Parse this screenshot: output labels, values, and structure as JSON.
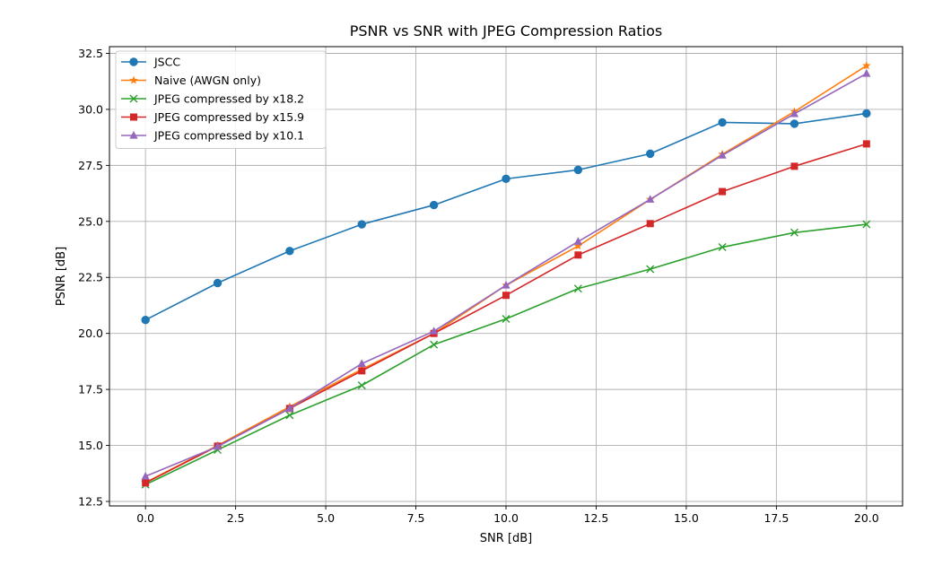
{
  "chart_data": {
    "type": "line",
    "title": "PSNR vs SNR with JPEG Compression Ratios",
    "xlabel": "SNR [dB]",
    "ylabel": "PSNR [dB]",
    "xlim": [
      -1.0,
      21.0
    ],
    "ylim": [
      12.3,
      32.8
    ],
    "xticks": [
      0.0,
      2.5,
      5.0,
      7.5,
      10.0,
      12.5,
      15.0,
      17.5,
      20.0
    ],
    "xtick_labels": [
      "0.0",
      "2.5",
      "5.0",
      "7.5",
      "10.0",
      "12.5",
      "15.0",
      "17.5",
      "20.0"
    ],
    "yticks": [
      12.5,
      15.0,
      17.5,
      20.0,
      22.5,
      25.0,
      27.5,
      30.0,
      32.5
    ],
    "ytick_labels": [
      "12.5",
      "15.0",
      "17.5",
      "20.0",
      "22.5",
      "25.0",
      "27.5",
      "30.0",
      "32.5"
    ],
    "grid": true,
    "legend_position": "top-left",
    "x": [
      0,
      2,
      4,
      6,
      8,
      10,
      12,
      14,
      16,
      18,
      20
    ],
    "series": [
      {
        "name": "JSCC",
        "color": "#1f77b4",
        "marker": "circle",
        "values": [
          20.6,
          22.25,
          23.68,
          24.87,
          25.73,
          26.9,
          27.3,
          28.02,
          29.42,
          29.36,
          29.82
        ]
      },
      {
        "name": "Naive (AWGN only)",
        "color": "#ff7f0e",
        "marker": "star",
        "values": [
          13.35,
          15.0,
          16.73,
          18.4,
          20.0,
          22.15,
          23.9,
          25.98,
          28.0,
          29.9,
          31.95
        ]
      },
      {
        "name": "JPEG compressed by x18.2",
        "color": "#2ca02c",
        "marker": "x",
        "values": [
          13.25,
          14.8,
          16.35,
          17.68,
          19.5,
          20.65,
          22.0,
          22.87,
          23.85,
          24.5,
          24.87
        ]
      },
      {
        "name": "JPEG compressed by x15.9",
        "color": "#d62728",
        "marker": "square",
        "values": [
          13.33,
          14.97,
          16.65,
          18.33,
          20.0,
          21.7,
          23.5,
          24.9,
          26.33,
          27.46,
          28.46
        ]
      },
      {
        "name": "JPEG compressed by x10.1",
        "color": "#9467bd",
        "marker": "triangle",
        "values": [
          13.62,
          14.95,
          16.65,
          18.65,
          20.1,
          22.15,
          24.1,
          25.98,
          27.95,
          29.8,
          31.6
        ]
      }
    ]
  }
}
